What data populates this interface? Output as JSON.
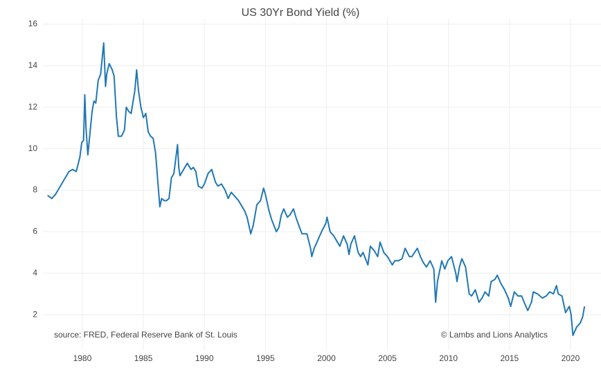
{
  "chart_data": {
    "type": "line",
    "title": "US 30Yr Bond Yield (%)",
    "annotations": [
      "source: FRED, Federal Reserve Bank of St. Louis",
      "© Lambs and Lions Analytics"
    ],
    "color": "#1f77b4",
    "grid": true,
    "xlim": [
      1976.77,
      2022.5
    ],
    "xticks": [
      1980,
      1985,
      1990,
      1995,
      2000,
      2005,
      2010,
      2015,
      2020
    ],
    "ylim": [
      0.3,
      16.3
    ],
    "yticks": [
      2,
      4,
      6,
      8,
      10,
      12,
      14,
      16
    ],
    "x": [
      1977.15,
      1977.5,
      1977.8,
      1978.0,
      1978.5,
      1978.9,
      1979.2,
      1979.5,
      1979.8,
      1979.95,
      1980.1,
      1980.2,
      1980.3,
      1980.45,
      1980.6,
      1980.8,
      1980.95,
      1981.1,
      1981.3,
      1981.5,
      1981.75,
      1981.9,
      1982.0,
      1982.2,
      1982.45,
      1982.6,
      1982.8,
      1982.95,
      1983.2,
      1983.45,
      1983.6,
      1983.8,
      1984.0,
      1984.3,
      1984.45,
      1984.6,
      1984.8,
      1985.0,
      1985.2,
      1985.4,
      1985.6,
      1985.8,
      1986.0,
      1986.2,
      1986.35,
      1986.5,
      1986.7,
      1986.9,
      1987.1,
      1987.3,
      1987.5,
      1987.8,
      1987.9,
      1988.0,
      1988.3,
      1988.6,
      1988.9,
      1989.1,
      1989.3,
      1989.5,
      1989.8,
      1990.0,
      1990.3,
      1990.6,
      1990.9,
      1991.1,
      1991.4,
      1991.7,
      1991.95,
      1992.2,
      1992.5,
      1992.8,
      1993.0,
      1993.3,
      1993.5,
      1993.8,
      1994.0,
      1994.3,
      1994.6,
      1994.85,
      1995.0,
      1995.3,
      1995.5,
      1995.9,
      1996.1,
      1996.3,
      1996.5,
      1996.8,
      1997.0,
      1997.3,
      1997.5,
      1997.8,
      1998.0,
      1998.4,
      1998.7,
      1998.8,
      1999.0,
      1999.3,
      1999.6,
      1999.95,
      2000.05,
      2000.3,
      2000.6,
      2000.9,
      2001.1,
      2001.4,
      2001.7,
      2001.85,
      2002.0,
      2002.3,
      2002.6,
      2002.8,
      2003.0,
      2003.4,
      2003.6,
      2003.9,
      2004.2,
      2004.4,
      2004.7,
      2005.0,
      2005.4,
      2005.6,
      2005.9,
      2006.2,
      2006.45,
      2006.8,
      2007.0,
      2007.45,
      2007.7,
      2007.95,
      2008.2,
      2008.5,
      2008.8,
      2008.95,
      2009.1,
      2009.45,
      2009.7,
      2009.95,
      2010.25,
      2010.6,
      2010.7,
      2010.9,
      2011.1,
      2011.4,
      2011.7,
      2011.9,
      2012.2,
      2012.5,
      2012.75,
      2013.0,
      2013.3,
      2013.5,
      2013.8,
      2014.0,
      2014.3,
      2014.6,
      2014.9,
      2015.1,
      2015.4,
      2015.7,
      2016.0,
      2016.2,
      2016.5,
      2016.8,
      2016.95,
      2017.3,
      2017.7,
      2018.0,
      2018.3,
      2018.6,
      2018.85,
      2019.0,
      2019.3,
      2019.6,
      2019.9,
      2020.05,
      2020.2,
      2020.5,
      2020.8,
      2021.0,
      2021.15
    ],
    "values": [
      7.75,
      7.6,
      7.8,
      8.0,
      8.5,
      8.9,
      9.0,
      8.9,
      9.6,
      10.3,
      10.4,
      12.6,
      11.0,
      9.7,
      10.6,
      11.8,
      12.3,
      12.2,
      13.3,
      13.6,
      15.1,
      13.0,
      13.6,
      14.1,
      13.8,
      13.5,
      11.5,
      10.6,
      10.6,
      10.9,
      12.0,
      11.8,
      11.7,
      12.8,
      13.8,
      12.8,
      12.0,
      11.5,
      11.7,
      10.8,
      10.6,
      10.5,
      9.8,
      8.3,
      7.2,
      7.6,
      7.5,
      7.5,
      7.6,
      8.6,
      8.8,
      10.2,
      9.1,
      8.7,
      9.0,
      9.3,
      9.0,
      9.1,
      8.9,
      8.2,
      8.1,
      8.3,
      8.8,
      9.0,
      8.4,
      8.2,
      8.3,
      8.0,
      7.6,
      7.9,
      7.7,
      7.5,
      7.3,
      7.0,
      6.7,
      5.9,
      6.3,
      7.3,
      7.5,
      8.1,
      7.8,
      7.0,
      6.6,
      6.0,
      6.2,
      6.8,
      7.1,
      6.7,
      6.8,
      7.1,
      6.7,
      6.2,
      5.9,
      5.9,
      5.2,
      4.8,
      5.2,
      5.6,
      6.0,
      6.4,
      6.7,
      6.0,
      5.8,
      5.5,
      5.3,
      5.8,
      5.4,
      4.9,
      5.4,
      5.8,
      5.0,
      4.8,
      5.0,
      4.4,
      5.3,
      5.1,
      4.8,
      5.5,
      5.0,
      4.8,
      4.4,
      4.6,
      4.6,
      4.7,
      5.2,
      4.8,
      4.8,
      5.2,
      4.8,
      4.5,
      4.3,
      4.6,
      4.2,
      2.6,
      3.6,
      4.6,
      4.2,
      4.6,
      4.8,
      4.0,
      3.6,
      4.3,
      4.7,
      4.3,
      3.0,
      2.9,
      3.2,
      2.6,
      2.8,
      3.1,
      2.9,
      3.6,
      3.7,
      3.9,
      3.5,
      3.2,
      2.8,
      2.4,
      3.1,
      2.9,
      2.9,
      2.6,
      2.2,
      2.6,
      3.1,
      3.0,
      2.8,
      2.9,
      3.1,
      3.0,
      3.4,
      3.0,
      2.9,
      2.1,
      2.4,
      2.0,
      1.0,
      1.4,
      1.6,
      1.9,
      2.4
    ]
  }
}
